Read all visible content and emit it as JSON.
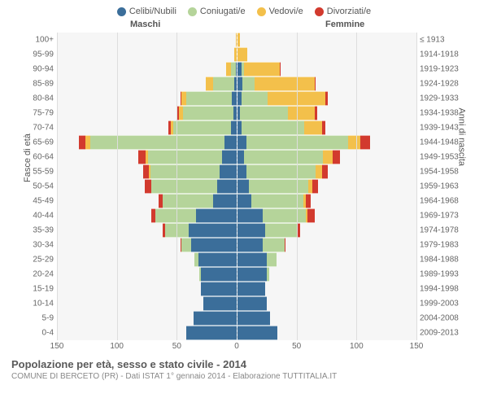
{
  "legend": [
    {
      "label": "Celibi/Nubili",
      "color": "#3b6e9a"
    },
    {
      "label": "Coniugati/e",
      "color": "#b5d49a"
    },
    {
      "label": "Vedovi/e",
      "color": "#f3c04b"
    },
    {
      "label": "Divorziati/e",
      "color": "#d23a2e"
    }
  ],
  "headers": {
    "left": "Maschi",
    "right": "Femmine"
  },
  "axis_titles": {
    "left": "Fasce di età",
    "right": "Anni di nascita"
  },
  "xticks": [
    150,
    100,
    50,
    0,
    50,
    100,
    150
  ],
  "xmax": 150,
  "colors": {
    "grid": "#dddddd",
    "plot_bg": "#f6f6f6",
    "text": "#555555"
  },
  "rows": [
    {
      "age": "100+",
      "birth": "≤ 1913",
      "m": [
        0,
        0,
        1,
        0
      ],
      "f": [
        0,
        0,
        3,
        0
      ]
    },
    {
      "age": "95-99",
      "birth": "1914-1918",
      "m": [
        0,
        0,
        2,
        0
      ],
      "f": [
        1,
        0,
        8,
        0
      ]
    },
    {
      "age": "90-94",
      "birth": "1919-1923",
      "m": [
        1,
        4,
        4,
        0
      ],
      "f": [
        4,
        2,
        30,
        1
      ]
    },
    {
      "age": "85-89",
      "birth": "1924-1928",
      "m": [
        2,
        18,
        6,
        0
      ],
      "f": [
        5,
        10,
        50,
        1
      ]
    },
    {
      "age": "80-84",
      "birth": "1929-1933",
      "m": [
        4,
        38,
        4,
        1
      ],
      "f": [
        4,
        22,
        48,
        2
      ]
    },
    {
      "age": "75-79",
      "birth": "1934-1938",
      "m": [
        3,
        42,
        3,
        2
      ],
      "f": [
        3,
        40,
        22,
        2
      ]
    },
    {
      "age": "70-74",
      "birth": "1939-1943",
      "m": [
        5,
        48,
        2,
        2
      ],
      "f": [
        4,
        52,
        15,
        3
      ]
    },
    {
      "age": "65-69",
      "birth": "1944-1948",
      "m": [
        10,
        112,
        4,
        6
      ],
      "f": [
        8,
        85,
        10,
        8
      ]
    },
    {
      "age": "60-64",
      "birth": "1949-1953",
      "m": [
        12,
        62,
        2,
        6
      ],
      "f": [
        6,
        66,
        8,
        6
      ]
    },
    {
      "age": "55-59",
      "birth": "1954-1958",
      "m": [
        14,
        58,
        1,
        5
      ],
      "f": [
        8,
        58,
        5,
        5
      ]
    },
    {
      "age": "50-54",
      "birth": "1959-1963",
      "m": [
        16,
        55,
        0,
        6
      ],
      "f": [
        10,
        50,
        3,
        5
      ]
    },
    {
      "age": "45-49",
      "birth": "1964-1968",
      "m": [
        20,
        42,
        0,
        3
      ],
      "f": [
        12,
        44,
        2,
        4
      ]
    },
    {
      "age": "40-44",
      "birth": "1969-1973",
      "m": [
        34,
        34,
        0,
        3
      ],
      "f": [
        22,
        36,
        1,
        6
      ]
    },
    {
      "age": "35-39",
      "birth": "1974-1978",
      "m": [
        40,
        20,
        0,
        2
      ],
      "f": [
        24,
        26,
        0,
        3
      ]
    },
    {
      "age": "30-34",
      "birth": "1979-1983",
      "m": [
        38,
        8,
        0,
        1
      ],
      "f": [
        22,
        18,
        0,
        1
      ]
    },
    {
      "age": "25-29",
      "birth": "1984-1988",
      "m": [
        32,
        3,
        0,
        0
      ],
      "f": [
        25,
        8,
        0,
        0
      ]
    },
    {
      "age": "20-24",
      "birth": "1989-1993",
      "m": [
        30,
        1,
        0,
        0
      ],
      "f": [
        25,
        2,
        0,
        0
      ]
    },
    {
      "age": "15-19",
      "birth": "1994-1998",
      "m": [
        30,
        0,
        0,
        0
      ],
      "f": [
        24,
        0,
        0,
        0
      ]
    },
    {
      "age": "10-14",
      "birth": "1999-2003",
      "m": [
        28,
        0,
        0,
        0
      ],
      "f": [
        25,
        0,
        0,
        0
      ]
    },
    {
      "age": "5-9",
      "birth": "2004-2008",
      "m": [
        36,
        0,
        0,
        0
      ],
      "f": [
        28,
        0,
        0,
        0
      ]
    },
    {
      "age": "0-4",
      "birth": "2009-2013",
      "m": [
        42,
        0,
        0,
        0
      ],
      "f": [
        34,
        0,
        0,
        0
      ]
    }
  ],
  "footer": {
    "title": "Popolazione per età, sesso e stato civile - 2014",
    "subtitle": "COMUNE DI BERCETO (PR) - Dati ISTAT 1° gennaio 2014 - Elaborazione TUTTITALIA.IT"
  }
}
